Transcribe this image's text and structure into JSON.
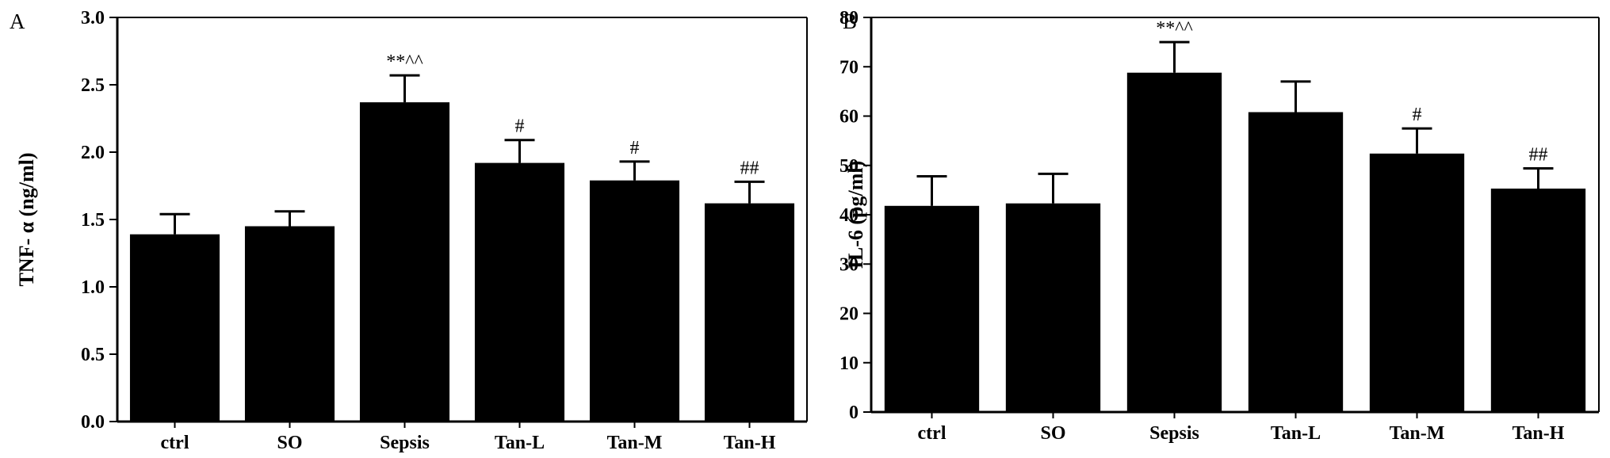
{
  "chart_data": [
    {
      "type": "bar",
      "panel_label": "A",
      "title": "",
      "xlabel": "",
      "ylabel": "TNF- α (ng/ml)",
      "categories": [
        "ctrl",
        "SO",
        "Sepsis",
        "Tan-L",
        "Tan-M",
        "Tan-H"
      ],
      "series": [
        {
          "values": [
            1.39,
            1.45,
            2.37,
            1.92,
            1.79,
            1.62
          ],
          "error": [
            0.15,
            0.11,
            0.2,
            0.17,
            0.14,
            0.16
          ]
        }
      ],
      "ylim": [
        0,
        3.0
      ],
      "yticks": [
        0.0,
        0.5,
        1.0,
        1.5,
        2.0,
        2.5,
        3.0
      ],
      "ytick_labels": [
        "0.0",
        "0.5",
        "1.0",
        "1.5",
        "2.0",
        "2.5",
        "3.0"
      ],
      "annotations": [
        "",
        "",
        "**^^",
        "#",
        "#",
        "##"
      ],
      "grid": false,
      "bar_color": "#000000"
    },
    {
      "type": "bar",
      "panel_label": "B",
      "title": "",
      "xlabel": "",
      "ylabel": "IL-6 (pg/ml)",
      "categories": [
        "ctrl",
        "SO",
        "Sepsis",
        "Tan-L",
        "Tan-M",
        "Tan-H"
      ],
      "series": [
        {
          "values": [
            41.8,
            42.3,
            68.8,
            60.8,
            52.4,
            45.3
          ],
          "error": [
            6,
            6,
            6.2,
            6.2,
            5.1,
            4.1
          ]
        }
      ],
      "ylim": [
        0,
        80
      ],
      "yticks": [
        0,
        10,
        20,
        30,
        40,
        50,
        60,
        70,
        80
      ],
      "ytick_labels": [
        "0",
        "10",
        "20",
        "30",
        "40",
        "50",
        "60",
        "70",
        "80"
      ],
      "annotations": [
        "",
        "",
        "**^^",
        "",
        "#",
        "##"
      ],
      "grid": false,
      "bar_color": "#000000"
    }
  ]
}
